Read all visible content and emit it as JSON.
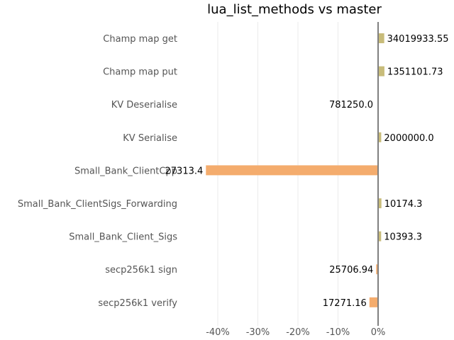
{
  "chart_data": {
    "type": "bar",
    "orientation": "horizontal",
    "title": "lua_list_methods vs master",
    "xlabel": "",
    "ylabel": "",
    "xlim": [
      -0.43,
      0
    ],
    "x_ticks": [
      -0.4,
      -0.3,
      -0.2,
      -0.1,
      0
    ],
    "x_tick_labels": [
      "-40%",
      "-30%",
      "-20%",
      "-10%",
      "0%"
    ],
    "grid": "vertical",
    "colors": {
      "positive": "#c8bc7a",
      "negative": "#f4ac6d",
      "zero_line": "#808080",
      "grid": "#ebebeb"
    },
    "categories": [
      "Champ map get",
      "Champ map put",
      "KV Deserialise",
      "KV Serialise",
      "Small_Bank_ClientCpp",
      "Small_Bank_ClientSigs_Forwarding",
      "Small_Bank_Client_Sigs",
      "secp256k1 sign",
      "secp256k1 verify"
    ],
    "values": [
      0.0153,
      0.0158,
      0,
      0.0078,
      -0.4296,
      0.0083,
      0.0076,
      -0.0048,
      -0.0216
    ],
    "data_labels": [
      "34019933.55",
      "1351101.73",
      "781250.0",
      "2000000.0",
      "27313.4",
      "10174.3",
      "10393.3",
      "25706.94",
      "17271.16"
    ]
  }
}
